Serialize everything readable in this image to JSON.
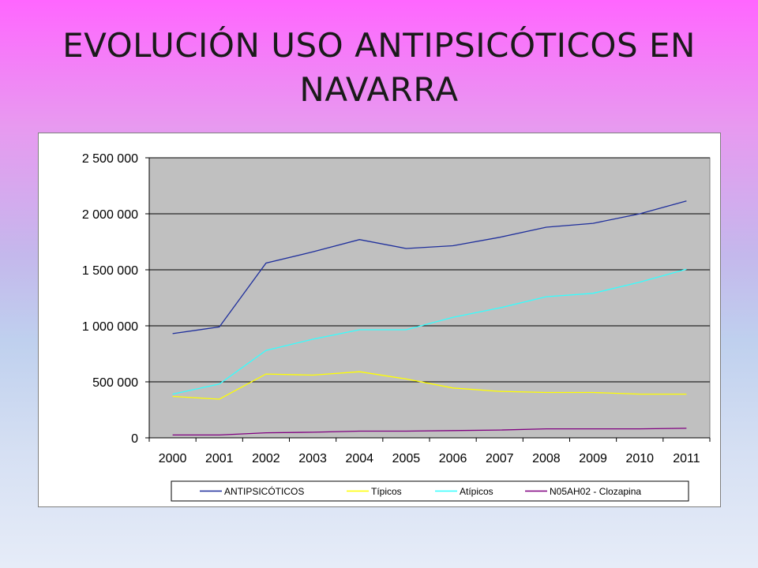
{
  "slide": {
    "title_line1": "EVOLUCIÓN USO ANTIPSICÓTICOS EN",
    "title_line2": "NAVARRA"
  },
  "chart_data": {
    "type": "line",
    "title": "EVOLUCIÓN USO ANTIPSICÓTICOS EN NAVARRA",
    "x": [
      "2000",
      "2001",
      "2002",
      "2003",
      "2004",
      "2005",
      "2006",
      "2007",
      "2008",
      "2009",
      "2010",
      "2011"
    ],
    "ylim": [
      0,
      2500000
    ],
    "yticks": [
      0,
      500000,
      1000000,
      1500000,
      2000000,
      2500000
    ],
    "ytick_labels": [
      "0",
      "500 000",
      "1 000 000",
      "1 500 000",
      "2 000 000",
      "2 500 000"
    ],
    "grid": true,
    "legend_position": "bottom",
    "plot_background": "#c0c0c0",
    "series": [
      {
        "name": "ANTIPSICÓTICOS",
        "color": "#1f2f9c",
        "values": [
          930000,
          990000,
          1560000,
          1660000,
          1770000,
          1690000,
          1715000,
          1790000,
          1880000,
          1915000,
          2000000,
          2115000
        ]
      },
      {
        "name": "Típicos",
        "color": "#ffff00",
        "values": [
          370000,
          345000,
          570000,
          560000,
          590000,
          525000,
          445000,
          415000,
          405000,
          405000,
          390000,
          390000
        ]
      },
      {
        "name": "Atípicos",
        "color": "#33ffff",
        "values": [
          390000,
          480000,
          780000,
          880000,
          965000,
          965000,
          1075000,
          1160000,
          1260000,
          1290000,
          1390000,
          1505000
        ]
      },
      {
        "name": "N05AH02 - Clozapina",
        "color": "#800080",
        "values": [
          25000,
          25000,
          45000,
          50000,
          60000,
          60000,
          65000,
          70000,
          80000,
          80000,
          80000,
          85000
        ]
      }
    ]
  }
}
